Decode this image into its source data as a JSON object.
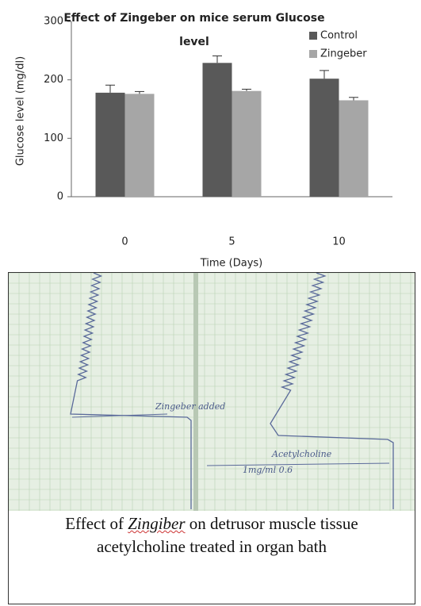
{
  "chart_data": {
    "type": "bar",
    "title": "Effect of Zingeber on mice serum Glucose level",
    "x_label": "Time (Days)",
    "y_label": "Glucose level (mg/dl)",
    "categories": [
      "0",
      "5",
      "10"
    ],
    "series": [
      {
        "name": "Control",
        "color": "#595959",
        "values": [
          178,
          229,
          202
        ],
        "errors": [
          13,
          12,
          14
        ]
      },
      {
        "name": "Zingeber",
        "color": "#a6a6a6",
        "values": [
          176,
          181,
          165
        ],
        "errors": [
          4,
          3,
          5
        ]
      }
    ],
    "ylim": [
      0,
      300
    ],
    "yticks": [
      0,
      100,
      200,
      300
    ],
    "grid": false,
    "legend": "upper right"
  },
  "figure": {
    "annotations": [
      "Zingeber added",
      "Acetylcholine",
      "1mg/ml 0.6"
    ],
    "caption": {
      "line1_start": "Effect of",
      "line1_emphasis": "Zingiber",
      "line1_end": "on detrusor muscle tissue",
      "line2": "acetylcholine  treated in organ bath"
    }
  }
}
